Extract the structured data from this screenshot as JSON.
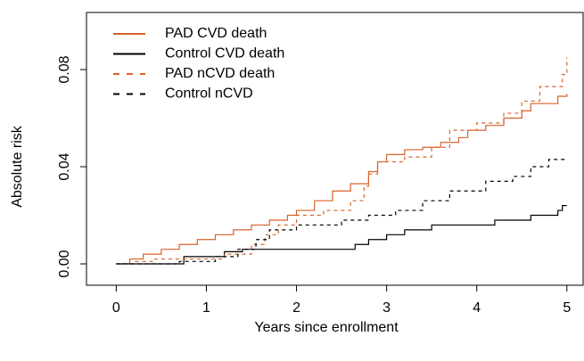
{
  "chart_data": {
    "type": "step",
    "x_label": "Years since enrollment",
    "y_label": "Absolute risk",
    "xlim": [
      -0.33,
      5.19
    ],
    "ylim": [
      -0.0088,
      0.1035
    ],
    "xticks": [
      0,
      1,
      2,
      3,
      4,
      5
    ],
    "yticks": [
      {
        "value": 0,
        "label": "0.00"
      },
      0.04,
      0.08
    ],
    "legend": "top-left",
    "series": [
      {
        "name": "PAD CVD death",
        "color": "#d9622b",
        "linestyle": "solid",
        "x": [
          0,
          0.15,
          0.3,
          0.5,
          0.7,
          0.9,
          1.1,
          1.3,
          1.5,
          1.7,
          1.9,
          2.0,
          2.2,
          2.4,
          2.6,
          2.8,
          2.9,
          3.0,
          3.2,
          3.4,
          3.6,
          3.8,
          3.9,
          4.1,
          4.3,
          4.5,
          4.6,
          4.9,
          5.0
        ],
        "values": [
          0,
          0.002,
          0.004,
          0.006,
          0.008,
          0.01,
          0.012,
          0.014,
          0.016,
          0.018,
          0.02,
          0.022,
          0.026,
          0.03,
          0.033,
          0.038,
          0.042,
          0.045,
          0.047,
          0.048,
          0.05,
          0.052,
          0.055,
          0.057,
          0.06,
          0.063,
          0.066,
          0.069,
          0.07
        ]
      },
      {
        "name": "Control CVD death",
        "color": "#000000",
        "linestyle": "solid",
        "x": [
          0,
          0.75,
          1.2,
          1.4,
          2.65,
          2.8,
          3.0,
          3.2,
          3.5,
          4.0,
          4.2,
          4.6,
          4.9,
          4.95,
          5.0
        ],
        "values": [
          0,
          0.003,
          0.005,
          0.006,
          0.008,
          0.01,
          0.012,
          0.014,
          0.016,
          0.016,
          0.018,
          0.02,
          0.022,
          0.024,
          0.024
        ]
      },
      {
        "name": "PAD nCVD death",
        "color": "#d9622b",
        "linestyle": "dashed",
        "x": [
          0,
          0.2,
          0.4,
          1.2,
          1.5,
          1.65,
          1.8,
          2.0,
          2.3,
          2.6,
          2.75,
          2.8,
          2.9,
          3.2,
          3.5,
          3.7,
          4.0,
          4.3,
          4.5,
          4.7,
          4.95,
          5.0
        ],
        "values": [
          0,
          0.001,
          0.002,
          0.004,
          0.008,
          0.012,
          0.016,
          0.02,
          0.022,
          0.026,
          0.032,
          0.037,
          0.042,
          0.044,
          0.048,
          0.055,
          0.058,
          0.062,
          0.067,
          0.073,
          0.078,
          0.085
        ]
      },
      {
        "name": "Control nCVD",
        "color": "#000000",
        "linestyle": "dashed",
        "x": [
          0,
          0.7,
          1.1,
          1.35,
          1.55,
          1.7,
          2.0,
          2.5,
          2.8,
          3.1,
          3.4,
          3.7,
          4.1,
          4.4,
          4.6,
          4.8,
          5.0
        ],
        "values": [
          0,
          0.001,
          0.003,
          0.006,
          0.01,
          0.014,
          0.016,
          0.018,
          0.02,
          0.022,
          0.026,
          0.03,
          0.034,
          0.036,
          0.04,
          0.043,
          0.043
        ]
      }
    ]
  }
}
